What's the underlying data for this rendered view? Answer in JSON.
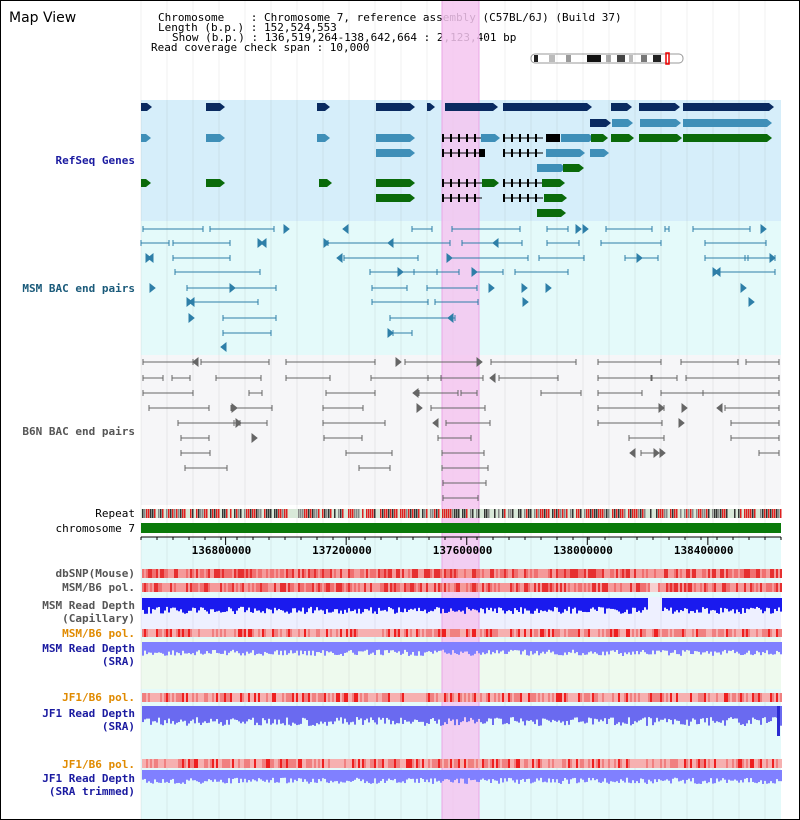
{
  "title": "Map View",
  "info": {
    "chromosome_line": "Chromosome    : Chromosome 7, reference assembly (C57BL/6J) (Build 37)",
    "length_line": "Length (b.p.) : 152,524,553",
    "show_line": "Show (b.p.) : 136,519,264-138,642,664 : 2,123,401 bp",
    "coverage_line": "Read coverage check span : 10,000"
  },
  "tracks": {
    "refseq": "RefSeq Genes",
    "msm_bac": "MSM BAC end pairs",
    "b6n_bac": "B6N BAC end pairs",
    "repeat": "Repeat",
    "chromosome": "chromosome 7",
    "dbsnp": "dbSNP(Mouse)",
    "msm_pol": "MSM/B6 pol.",
    "msm_depth_cap": "MSM Read Depth\n(Capillary)",
    "msm_pol2": "MSM/B6 pol.",
    "msm_depth_sra": "MSM Read Depth\n(SRA)",
    "jf1_pol": "JF1/B6 pol.",
    "jf1_depth_sra": "JF1 Read Depth\n(SRA)",
    "jf1_pol2": "JF1/B6 pol.",
    "jf1_depth_trim": "JF1 Read Depth\n(SRA trimmed)"
  },
  "axis": {
    "ticks": [
      {
        "label": "136800000",
        "value": 136800000
      },
      {
        "label": "137200000",
        "value": 137200000
      },
      {
        "label": "137600000",
        "value": 137600000
      },
      {
        "label": "138000000",
        "value": 138000000
      },
      {
        "label": "138400000",
        "value": 138400000
      }
    ],
    "start": 136519264,
    "end": 138642664
  },
  "colors": {
    "refseq_bg": "#d6eefa",
    "msm_bac_bg": "#e4fafa",
    "b6n_bac_bg": "#f4f4f7",
    "highlight": "#f4c6f0",
    "gene_dark": "#0a2a60",
    "gene_mid": "#3f8fb8",
    "gene_green": "#0a6a0a",
    "bac_blue": "#2e7fa8",
    "bac_gray": "#666666",
    "chrom_green": "#0a7a0a",
    "msm_label": "#1a5a7a",
    "refseq_label": "#1a1aa0",
    "orange_label": "#e08a00",
    "navy_label": "#1a1aa0",
    "depth_blue": "#1a1aee",
    "depth_light": "#8080ff"
  }
}
